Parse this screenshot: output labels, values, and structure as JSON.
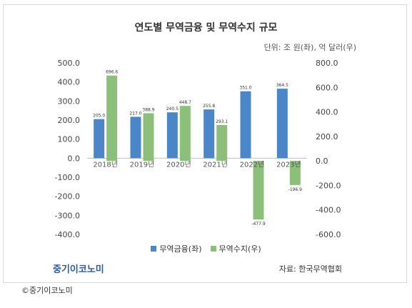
{
  "chart_data": {
    "type": "bar",
    "title": "연도별 무역금융 및 무역수지 규모",
    "unit_note": "단위: 조 원(좌), 억 달러(우)",
    "categories": [
      "2018년",
      "2019년",
      "2020년",
      "2021년",
      "2022년",
      "2023년"
    ],
    "series": [
      {
        "name": "무역금융(좌)",
        "axis": "left",
        "color": "#4a86c8",
        "values": [
          205.0,
          217.0,
          240.5,
          255.8,
          351.0,
          364.5
        ],
        "labels": [
          "205.0",
          "217.0",
          "240.5",
          "255.8",
          "351.0",
          "364.5"
        ]
      },
      {
        "name": "무역수지(우)",
        "axis": "right",
        "color": "#8cc07a",
        "values": [
          696.6,
          388.9,
          448.7,
          293.1,
          -477.9,
          -196.9
        ],
        "labels": [
          "696.6",
          "388.9",
          "448.7",
          "293.1",
          "-477.9",
          "-196.9"
        ]
      }
    ],
    "y_left": {
      "range": [
        -400,
        500
      ],
      "ticks": [
        "500.0",
        "400.0",
        "300.0",
        "200.0",
        "100.0",
        "0.0",
        "-100.0",
        "-200.0",
        "-300.0",
        "-400.0"
      ],
      "tick_values": [
        500,
        400,
        300,
        200,
        100,
        0,
        -100,
        -200,
        -300,
        -400
      ]
    },
    "y_right": {
      "range": [
        -600,
        800
      ],
      "ticks": [
        "800.0",
        "600.0",
        "400.0",
        "200.0",
        "0.0",
        "-200.0",
        "-400.0",
        "-600.0"
      ],
      "tick_values": [
        800,
        600,
        400,
        200,
        0,
        -200,
        -400,
        -600
      ]
    },
    "grid": false,
    "legend_position": "bottom"
  },
  "footer": {
    "brand": "중기이코노미",
    "source": "자료: 한국무역협회",
    "credit": "©중기이코노미"
  }
}
